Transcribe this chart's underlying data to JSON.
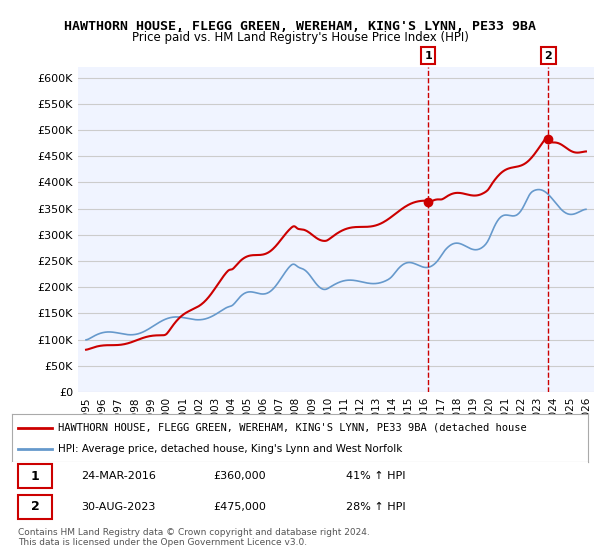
{
  "title": "HAWTHORN HOUSE, FLEGG GREEN, WEREHAM, KING'S LYNN, PE33 9BA",
  "subtitle": "Price paid vs. HM Land Registry's House Price Index (HPI)",
  "ylabel_ticks": [
    "£0",
    "£50K",
    "£100K",
    "£150K",
    "£200K",
    "£250K",
    "£300K",
    "£350K",
    "£400K",
    "£450K",
    "£500K",
    "£550K",
    "£600K"
  ],
  "ytick_values": [
    0,
    50000,
    100000,
    150000,
    200000,
    250000,
    300000,
    350000,
    400000,
    450000,
    500000,
    550000,
    600000
  ],
  "ylim": [
    0,
    620000
  ],
  "red_color": "#cc0000",
  "blue_color": "#6699cc",
  "legend_red_label": "HAWTHORN HOUSE, FLEGG GREEN, WEREHAM, KING'S LYNN, PE33 9BA (detached house",
  "legend_blue_label": "HPI: Average price, detached house, King's Lynn and West Norfolk",
  "point1_date": "24-MAR-2016",
  "point1_price": "£360,000",
  "point1_pct": "41% ↑ HPI",
  "point2_date": "30-AUG-2023",
  "point2_price": "£475,000",
  "point2_pct": "28% ↑ HPI",
  "footnote": "Contains HM Land Registry data © Crown copyright and database right 2024.\nThis data is licensed under the Open Government Licence v3.0.",
  "background_color": "#ffffff",
  "plot_bg_color": "#f0f4ff",
  "grid_color": "#cccccc"
}
